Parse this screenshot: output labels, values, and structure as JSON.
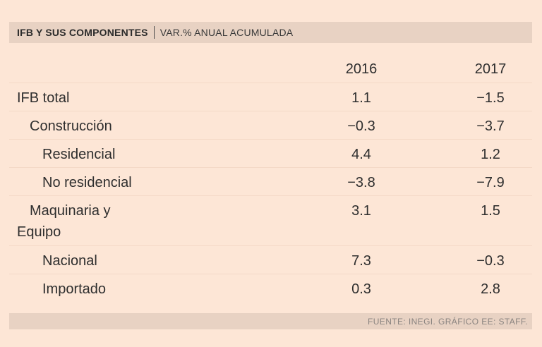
{
  "header": {
    "title": "IFB Y SUS COMPONENTES",
    "subtitle": "VAR.% ANUAL ACUMULADA"
  },
  "chart_data": {
    "type": "table",
    "title": "IFB Y SUS COMPONENTES",
    "subtitle": "VAR.% ANUAL ACUMULADA",
    "columns": [
      "2016",
      "2017"
    ],
    "rows": [
      {
        "label": "IFB total",
        "level": 0,
        "values": [
          "1.1",
          "−1.5"
        ]
      },
      {
        "label": "Construcción",
        "level": 1,
        "values": [
          "−0.3",
          "−3.7"
        ]
      },
      {
        "label": "Residencial",
        "level": 2,
        "values": [
          "4.4",
          "1.2"
        ]
      },
      {
        "label": "No residencial",
        "level": 2,
        "values": [
          "−3.8",
          "−7.9"
        ]
      },
      {
        "label_lines": [
          "Maquinaria y",
          "Equipo"
        ],
        "level": 1,
        "values": [
          "3.1",
          "1.5"
        ]
      },
      {
        "label": "Nacional",
        "level": 2,
        "values": [
          "7.3",
          "−0.3"
        ]
      },
      {
        "label": "Importado",
        "level": 2,
        "values": [
          "0.3",
          "2.8"
        ]
      }
    ]
  },
  "footer": {
    "source": "FUENTE: INEGI.  GRÁFICO EE: STAFF."
  }
}
